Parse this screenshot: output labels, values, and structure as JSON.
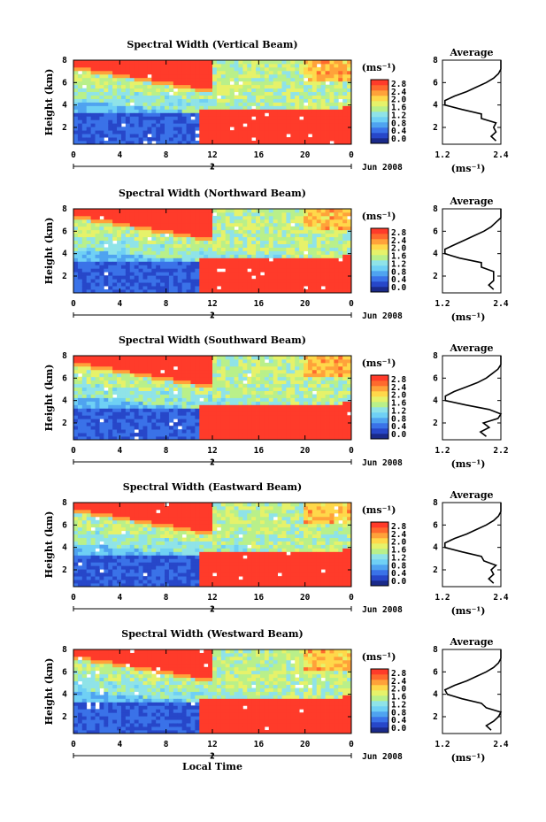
{
  "figure": {
    "xlabel": "Local Time",
    "date_label": "Jun 2008",
    "colorbar_unit": "(ms⁻¹)",
    "avg_title": "Average",
    "avg_xlabel": "(ms⁻¹)"
  },
  "colors": {
    "colormap": [
      "#1a2a8a",
      "#2747c9",
      "#3a72e8",
      "#4fa3f0",
      "#6fd0f5",
      "#8fe3e8",
      "#b9f08a",
      "#e6f26a",
      "#ffd84a",
      "#ffa23a",
      "#ff6a2e",
      "#ff3b2a"
    ]
  },
  "chart_data": [
    {
      "type": "heatmap",
      "title": "Spectral Width (Vertical Beam)",
      "ylabel": "Height (km)",
      "xticks": [
        "0",
        "4",
        "8",
        "12",
        "16",
        "20",
        "0"
      ],
      "xticks2": [
        "2"
      ],
      "yticks": [
        "2",
        "4",
        "6",
        "8"
      ],
      "xlim": [
        0,
        24
      ],
      "ylim": [
        0.5,
        8
      ],
      "colorbar_ticks": [
        "2.8",
        "2.4",
        "2.0",
        "1.6",
        "1.2",
        "0.8",
        "0.4",
        "0.0"
      ],
      "colorbar_range": [
        0.0,
        2.8
      ],
      "average": {
        "title": "Average",
        "xlim": [
          1.2,
          2.4
        ],
        "xticks": [
          "1.2",
          "2.4"
        ],
        "ylim": [
          0.5,
          8
        ],
        "yticks": [
          "2",
          "4",
          "6",
          "8"
        ],
        "height": [
          0.8,
          1.2,
          1.6,
          2.0,
          2.4,
          2.8,
          3.2,
          3.6,
          4.0,
          4.4,
          4.8,
          5.2,
          5.6,
          6.0,
          6.4,
          6.8,
          7.2,
          7.6,
          8.0
        ],
        "width": [
          2.3,
          2.2,
          2.3,
          2.25,
          2.3,
          2.0,
          2.0,
          1.6,
          1.25,
          1.25,
          1.45,
          1.7,
          1.9,
          2.1,
          2.25,
          2.35,
          2.4,
          2.4,
          2.4
        ]
      }
    },
    {
      "type": "heatmap",
      "title": "Spectral Width (Northward Beam)",
      "ylabel": "Height (km)",
      "xticks": [
        "0",
        "4",
        "8",
        "12",
        "16",
        "20",
        "0"
      ],
      "xticks2": [
        "2"
      ],
      "yticks": [
        "2",
        "4",
        "6",
        "8"
      ],
      "xlim": [
        0,
        24
      ],
      "ylim": [
        0.5,
        8
      ],
      "colorbar_ticks": [
        "2.8",
        "2.4",
        "2.0",
        "1.6",
        "1.2",
        "0.8",
        "0.4",
        "0.0"
      ],
      "colorbar_range": [
        0.0,
        2.8
      ],
      "average": {
        "title": "Average",
        "xlim": [
          1.2,
          2.4
        ],
        "xticks": [
          "1.2",
          "2.4"
        ],
        "ylim": [
          0.5,
          8
        ],
        "yticks": [
          "2",
          "4",
          "6",
          "8"
        ],
        "height": [
          0.8,
          1.2,
          1.6,
          2.0,
          2.4,
          2.8,
          3.2,
          3.6,
          4.0,
          4.4,
          4.8,
          5.2,
          5.6,
          6.0,
          6.4,
          6.8,
          7.2,
          7.6,
          8.0
        ],
        "width": [
          2.25,
          2.15,
          2.25,
          2.25,
          2.25,
          2.0,
          2.0,
          1.55,
          1.25,
          1.25,
          1.45,
          1.65,
          1.85,
          2.05,
          2.2,
          2.3,
          2.4,
          2.4,
          2.4
        ]
      }
    },
    {
      "type": "heatmap",
      "title": "Spectral Width (Southward Beam)",
      "ylabel": "Height (km)",
      "xticks": [
        "0",
        "4",
        "8",
        "12",
        "16",
        "20",
        "0"
      ],
      "xticks2": [
        "2"
      ],
      "yticks": [
        "2",
        "4",
        "6",
        "8"
      ],
      "xlim": [
        0,
        24
      ],
      "ylim": [
        0.5,
        8
      ],
      "colorbar_ticks": [
        "2.8",
        "2.4",
        "2.0",
        "1.6",
        "1.2",
        "0.8",
        "0.4",
        "0.0"
      ],
      "colorbar_range": [
        0.0,
        2.8
      ],
      "average": {
        "title": "Average",
        "xlim": [
          1.2,
          2.2
        ],
        "xticks": [
          "1.2",
          "2.2"
        ],
        "ylim": [
          0.5,
          8
        ],
        "yticks": [
          "2",
          "4",
          "6",
          "8"
        ],
        "height": [
          0.8,
          1.2,
          1.6,
          2.0,
          2.4,
          2.8,
          3.2,
          3.6,
          4.0,
          4.4,
          4.8,
          5.2,
          5.6,
          6.0,
          6.4,
          6.8,
          7.2,
          7.6,
          8.0
        ],
        "width": [
          1.95,
          1.85,
          2.0,
          1.9,
          2.15,
          2.2,
          2.0,
          1.6,
          1.25,
          1.25,
          1.4,
          1.6,
          1.8,
          1.95,
          2.05,
          2.15,
          2.2,
          2.2,
          2.2
        ]
      }
    },
    {
      "type": "heatmap",
      "title": "Spectral Width (Eastward Beam)",
      "ylabel": "Height (km)",
      "xticks": [
        "0",
        "4",
        "8",
        "12",
        "16",
        "20",
        "0"
      ],
      "xticks2": [
        "2"
      ],
      "yticks": [
        "2",
        "4",
        "6",
        "8"
      ],
      "xlim": [
        0,
        24
      ],
      "ylim": [
        0.5,
        8
      ],
      "colorbar_ticks": [
        "2.8",
        "2.4",
        "2.0",
        "1.6",
        "1.2",
        "0.8",
        "0.4",
        "0.0"
      ],
      "colorbar_range": [
        0.0,
        2.8
      ],
      "average": {
        "title": "Average",
        "xlim": [
          1.2,
          2.4
        ],
        "xticks": [
          "1.2",
          "2.4"
        ],
        "ylim": [
          0.5,
          8
        ],
        "yticks": [
          "2",
          "4",
          "6",
          "8"
        ],
        "height": [
          0.8,
          1.2,
          1.6,
          2.0,
          2.4,
          2.8,
          3.2,
          3.6,
          4.0,
          4.4,
          4.8,
          5.2,
          5.6,
          6.0,
          6.4,
          6.8,
          7.2,
          7.6,
          8.0
        ],
        "width": [
          2.25,
          2.15,
          2.25,
          2.2,
          2.3,
          2.05,
          2.0,
          1.6,
          1.25,
          1.25,
          1.45,
          1.7,
          1.9,
          2.1,
          2.25,
          2.35,
          2.4,
          2.4,
          2.4
        ]
      }
    },
    {
      "type": "heatmap",
      "title": "Spectral Width (Westward Beam)",
      "ylabel": "Height (km)",
      "xticks": [
        "0",
        "4",
        "8",
        "12",
        "16",
        "20",
        "0"
      ],
      "xticks2": [
        "2"
      ],
      "yticks": [
        "2",
        "4",
        "6",
        "8"
      ],
      "xlim": [
        0,
        24
      ],
      "ylim": [
        0.5,
        8
      ],
      "colorbar_ticks": [
        "2.8",
        "2.4",
        "2.0",
        "1.6",
        "1.2",
        "0.8",
        "0.4",
        "0.0"
      ],
      "colorbar_range": [
        0.0,
        2.8
      ],
      "average": {
        "title": "Average",
        "xlim": [
          1.2,
          2.4
        ],
        "xticks": [
          "1.2",
          "2.4"
        ],
        "ylim": [
          0.5,
          8
        ],
        "yticks": [
          "2",
          "4",
          "6",
          "8"
        ],
        "height": [
          0.8,
          1.2,
          1.6,
          2.0,
          2.4,
          2.8,
          3.2,
          3.6,
          4.0,
          4.4,
          4.8,
          5.2,
          5.6,
          6.0,
          6.4,
          6.8,
          7.2,
          7.6,
          8.0
        ],
        "width": [
          2.2,
          2.1,
          2.25,
          2.35,
          2.4,
          2.1,
          2.0,
          1.6,
          1.3,
          1.25,
          1.45,
          1.7,
          1.9,
          2.1,
          2.25,
          2.35,
          2.4,
          2.4,
          2.4
        ]
      }
    }
  ]
}
